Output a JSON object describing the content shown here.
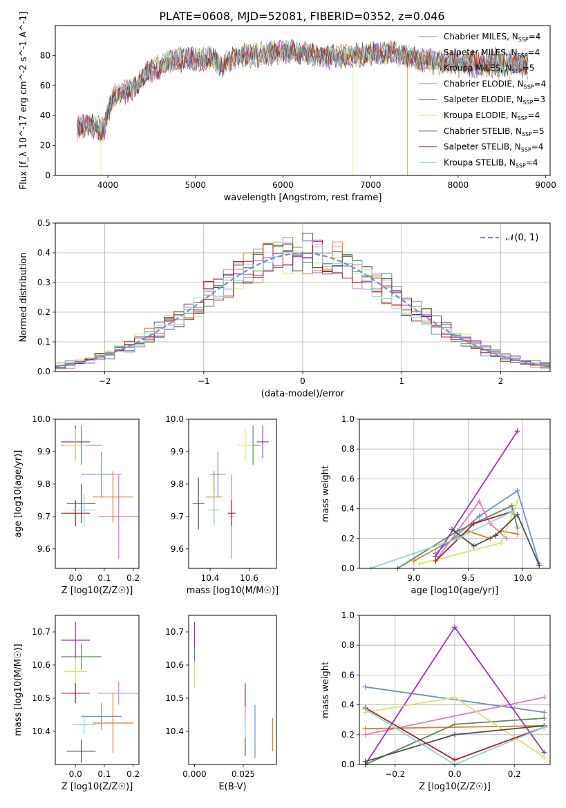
{
  "title": "PLATE=0608, MJD=52081, FIBERID=0352, z=0.046",
  "colors": {
    "Chabrier MILES": "#6a8fdb",
    "Salpeter MILES": "#e377c2",
    "Kroupa MILES": "#e07b1f",
    "Chabrier ELODIE": "#5b8a5b",
    "Salpeter ELODIE": "#9b30b8",
    "Kroupa ELODIE": "#d4e85a",
    "Chabrier STELIB": "#4d4d4d",
    "Salpeter STELIB": "#b01c1c",
    "Kroupa STELIB": "#7fd8e0"
  },
  "chart_data": [
    {
      "id": "spectrum",
      "type": "line",
      "xlabel": "wavelength [Angstrom, rest frame]",
      "ylabel": "Flux [f_λ 10^-17 erg cm^-2 s^-1 A^-1]",
      "xlim": [
        3400,
        9050
      ],
      "ylim": [
        0,
        100
      ],
      "xticks": [
        4000,
        5000,
        6000,
        7000,
        8000,
        9000
      ],
      "yticks": [
        0,
        20,
        40,
        60,
        80
      ],
      "grid": false,
      "legend_position": "top-right",
      "legend": [
        {
          "name": "Chabrier MILES",
          "label": "Chabrier MILES, N",
          "sub": "SSP",
          "tail": "=4"
        },
        {
          "name": "Salpeter MILES",
          "label": "Salpeter MILES, N",
          "sub": "SSP",
          "tail": "=4"
        },
        {
          "name": "Kroupa MILES",
          "label": "Kroupa MILES, N",
          "sub": "SSP",
          "tail": "=5"
        },
        {
          "name": "Chabrier ELODIE",
          "label": "Chabrier ELODIE, N",
          "sub": "SSP",
          "tail": "=4"
        },
        {
          "name": "Salpeter ELODIE",
          "label": "Salpeter ELODIE, N",
          "sub": "SSP",
          "tail": "=3"
        },
        {
          "name": "Kroupa ELODIE",
          "label": "Kroupa ELODIE, N",
          "sub": "SSP",
          "tail": "=4"
        },
        {
          "name": "Chabrier STELIB",
          "label": "Chabrier STELIB, N",
          "sub": "SSP",
          "tail": "=5"
        },
        {
          "name": "Salpeter STELIB",
          "label": "Salpeter STELIB, N",
          "sub": "SSP",
          "tail": "=4"
        },
        {
          "name": "Kroupa STELIB",
          "label": "Kroupa STELIB, N",
          "sub": "SSP",
          "tail": "=4"
        }
      ],
      "continuum": [
        [
          3650,
          31
        ],
        [
          3750,
          34
        ],
        [
          3850,
          33
        ],
        [
          3950,
          30
        ],
        [
          4050,
          52
        ],
        [
          4150,
          55
        ],
        [
          4300,
          58
        ],
        [
          4400,
          66
        ],
        [
          4500,
          70
        ],
        [
          4700,
          76
        ],
        [
          4900,
          78
        ],
        [
          5000,
          77
        ],
        [
          5200,
          78
        ],
        [
          5300,
          74
        ],
        [
          5500,
          80
        ],
        [
          5700,
          80
        ],
        [
          5900,
          82
        ],
        [
          6000,
          82
        ],
        [
          6200,
          82
        ],
        [
          6400,
          80
        ],
        [
          6600,
          79
        ],
        [
          6800,
          80
        ],
        [
          7000,
          81
        ],
        [
          7200,
          82
        ],
        [
          7400,
          80
        ],
        [
          7600,
          77
        ],
        [
          7800,
          75
        ],
        [
          8000,
          76
        ],
        [
          8200,
          74
        ],
        [
          8400,
          75
        ],
        [
          8600,
          74
        ],
        [
          8800,
          74
        ]
      ],
      "drops": [
        {
          "series": "Kroupa ELODIE",
          "x": 3920,
          "y": 0
        },
        {
          "series": "Kroupa ELODIE",
          "x": 6800,
          "y": 0
        },
        {
          "series": "Kroupa MILES",
          "x": 7420,
          "y": 0
        }
      ]
    },
    {
      "id": "residuals",
      "type": "histogram",
      "xlabel": "(data-model)/error",
      "ylabel": "Normed distribution",
      "xlim": [
        -2.5,
        2.5
      ],
      "ylim": [
        0,
        0.5
      ],
      "xticks": [
        -2,
        -1,
        0,
        1,
        2
      ],
      "yticks": [
        0.0,
        0.1,
        0.2,
        0.3,
        0.4,
        0.5
      ],
      "grid": true,
      "bin_width": 0.1,
      "reference_curve": {
        "label": "𝒩(0, 1)",
        "mean": 0,
        "sigma": 1,
        "style": "dashed"
      },
      "legend_position": "top-right"
    },
    {
      "id": "age-vs-Z",
      "type": "errorbar",
      "xlabel": "Z [log10(Z/Z☉)]",
      "ylabel": "age [log10(age/yr)]",
      "xlim": [
        -0.07,
        0.22
      ],
      "ylim": [
        9.54,
        10.0
      ],
      "xticks": [
        0.0,
        0.1,
        0.2
      ],
      "yticks": [
        9.6,
        9.7,
        9.8,
        9.9,
        10.0
      ],
      "points": [
        {
          "series": "Chabrier MILES",
          "x": 0.09,
          "y": 9.83,
          "xerr": 0.07,
          "yerr": 0.07
        },
        {
          "series": "Salpeter MILES",
          "x": 0.15,
          "y": 9.7,
          "xerr": 0.07,
          "yerr": 0.13
        },
        {
          "series": "Kroupa MILES",
          "x": 0.13,
          "y": 9.76,
          "xerr": 0.07,
          "yerr": 0.08
        },
        {
          "series": "Chabrier ELODIE",
          "x": 0.02,
          "y": 9.92,
          "xerr": 0.07,
          "yerr": 0.06
        },
        {
          "series": "Salpeter ELODIE",
          "x": 0.0,
          "y": 9.93,
          "xerr": 0.05,
          "yerr": 0.05
        },
        {
          "series": "Kroupa ELODIE",
          "x": 0.0,
          "y": 9.92,
          "xerr": 0.04,
          "yerr": 0.05
        },
        {
          "series": "Chabrier STELIB",
          "x": 0.02,
          "y": 9.74,
          "xerr": 0.05,
          "yerr": 0.06
        },
        {
          "series": "Salpeter STELIB",
          "x": 0.0,
          "y": 9.71,
          "xerr": 0.05,
          "yerr": 0.04
        },
        {
          "series": "Kroupa STELIB",
          "x": 0.03,
          "y": 9.72,
          "xerr": 0.04,
          "yerr": 0.05
        }
      ]
    },
    {
      "id": "age-vs-mass",
      "type": "errorbar",
      "xlabel": "mass [log10(M/M☉)]",
      "ylabel": "",
      "xlim": [
        10.29,
        10.74
      ],
      "ylim": [
        9.54,
        10.0
      ],
      "xticks": [
        10.4,
        10.6
      ],
      "yticks": [
        9.6,
        9.7,
        9.8,
        9.9,
        10.0
      ],
      "points": [
        {
          "series": "Chabrier MILES",
          "x": 10.44,
          "y": 9.83,
          "xerr": 0.04,
          "yerr": 0.07
        },
        {
          "series": "Salpeter MILES",
          "x": 10.51,
          "y": 9.7,
          "xerr": 0.01,
          "yerr": 0.13
        },
        {
          "series": "Kroupa MILES",
          "x": 10.42,
          "y": 9.76,
          "xerr": 0.04,
          "yerr": 0.08
        },
        {
          "series": "Chabrier ELODIE",
          "x": 10.62,
          "y": 9.92,
          "xerr": 0.04,
          "yerr": 0.06
        },
        {
          "series": "Salpeter ELODIE",
          "x": 10.67,
          "y": 9.93,
          "xerr": 0.03,
          "yerr": 0.05
        },
        {
          "series": "Kroupa ELODIE",
          "x": 10.58,
          "y": 9.92,
          "xerr": 0.04,
          "yerr": 0.05
        },
        {
          "series": "Chabrier STELIB",
          "x": 10.34,
          "y": 9.74,
          "xerr": 0.03,
          "yerr": 0.08
        },
        {
          "series": "Salpeter STELIB",
          "x": 10.51,
          "y": 9.71,
          "xerr": 0.02,
          "yerr": 0.04
        },
        {
          "series": "Kroupa STELIB",
          "x": 10.42,
          "y": 9.72,
          "xerr": 0.03,
          "yerr": 0.05
        }
      ]
    },
    {
      "id": "weight-vs-age",
      "type": "line",
      "xlabel": "age [log10(age/yr)]",
      "ylabel": "mass weight",
      "xlim": [
        8.5,
        10.25
      ],
      "ylim": [
        0,
        1.0
      ],
      "xticks": [
        9.0,
        9.5,
        10.0
      ],
      "yticks": [
        0.0,
        0.2,
        0.4,
        0.6,
        0.8,
        1.0
      ],
      "grid": true,
      "series": [
        {
          "name": "Chabrier MILES",
          "x": [
            9.2,
            9.6,
            9.95,
            10.15
          ],
          "y": [
            0.1,
            0.35,
            0.52,
            0.03
          ]
        },
        {
          "name": "Salpeter MILES",
          "x": [
            9.2,
            9.6,
            9.7,
            9.85
          ],
          "y": [
            0.05,
            0.45,
            0.3,
            0.2
          ]
        },
        {
          "name": "Kroupa MILES",
          "x": [
            9.0,
            9.5,
            9.7,
            9.8,
            9.95
          ],
          "y": [
            0.05,
            0.25,
            0.2,
            0.25,
            0.23
          ]
        },
        {
          "name": "Chabrier ELODIE",
          "x": [
            8.85,
            9.4,
            9.9,
            9.95
          ],
          "y": [
            0.0,
            0.25,
            0.42,
            0.27
          ]
        },
        {
          "name": "Salpeter ELODIE",
          "x": [
            9.2,
            9.95
          ],
          "y": [
            0.08,
            0.92
          ]
        },
        {
          "name": "Kroupa ELODIE",
          "x": [
            9.05,
            9.8,
            9.95
          ],
          "y": [
            0.03,
            0.17,
            0.45
          ]
        },
        {
          "name": "Chabrier STELIB",
          "x": [
            9.35,
            9.55,
            9.75,
            9.95,
            10.15
          ],
          "y": [
            0.26,
            0.15,
            0.22,
            0.36,
            0.02
          ]
        },
        {
          "name": "Salpeter STELIB",
          "x": [
            9.2,
            9.55,
            9.9
          ],
          "y": [
            0.05,
            0.3,
            0.38
          ]
        },
        {
          "name": "Kroupa STELIB",
          "x": [
            8.6,
            9.4,
            9.9
          ],
          "y": [
            0.0,
            0.2,
            0.38
          ]
        }
      ]
    },
    {
      "id": "mass-vs-Z",
      "type": "errorbar",
      "xlabel": "Z [log10(Z/Z☉)]",
      "ylabel": "mass [log10(M/M☉)]",
      "xlim": [
        -0.07,
        0.22
      ],
      "ylim": [
        10.3,
        10.75
      ],
      "xticks": [
        0.0,
        0.1,
        0.2
      ],
      "yticks": [
        10.4,
        10.5,
        10.6,
        10.7
      ],
      "points": [
        {
          "series": "Chabrier MILES",
          "x": 0.09,
          "y": 10.445,
          "xerr": 0.07,
          "yerr": 0.04
        },
        {
          "series": "Salpeter MILES",
          "x": 0.15,
          "y": 10.515,
          "xerr": 0.07,
          "yerr": 0.035
        },
        {
          "series": "Kroupa MILES",
          "x": 0.13,
          "y": 10.425,
          "xerr": 0.07,
          "yerr": 0.09
        },
        {
          "series": "Chabrier ELODIE",
          "x": 0.02,
          "y": 10.625,
          "xerr": 0.07,
          "yerr": 0.04
        },
        {
          "series": "Salpeter ELODIE",
          "x": 0.0,
          "y": 10.675,
          "xerr": 0.05,
          "yerr": 0.055
        },
        {
          "series": "Kroupa ELODIE",
          "x": 0.0,
          "y": 10.58,
          "xerr": 0.04,
          "yerr": 0.04
        },
        {
          "series": "Chabrier STELIB",
          "x": 0.02,
          "y": 10.34,
          "xerr": 0.05,
          "yerr": 0.035
        },
        {
          "series": "Salpeter STELIB",
          "x": 0.0,
          "y": 10.515,
          "xerr": 0.05,
          "yerr": 0.03
        },
        {
          "series": "Kroupa STELIB",
          "x": 0.03,
          "y": 10.42,
          "xerr": 0.04,
          "yerr": 0.03
        }
      ]
    },
    {
      "id": "mass-vs-ebv",
      "type": "errorbar",
      "xlabel": "E(B-V)",
      "ylabel": "",
      "xlim": [
        -0.003,
        0.042
      ],
      "ylim": [
        10.3,
        10.75
      ],
      "xticks": [
        0.0,
        0.025
      ],
      "xticklabels": [
        "0.000",
        "0.025"
      ],
      "yticks": [
        10.4,
        10.5,
        10.6,
        10.7
      ],
      "points": [
        {
          "series": "Chabrier MILES",
          "x": 0.031,
          "y": 10.4,
          "xerr": 0,
          "yerr": 0.08
        },
        {
          "series": "Salpeter MILES",
          "x": 0.026,
          "y": 10.47,
          "xerr": 0,
          "yerr": 0.06
        },
        {
          "series": "Kroupa MILES",
          "x": 0.04,
          "y": 10.39,
          "xerr": 0,
          "yerr": 0.05
        },
        {
          "series": "Chabrier ELODIE",
          "x": 0.0,
          "y": 10.62,
          "xerr": 0,
          "yerr": 0.03
        },
        {
          "series": "Salpeter ELODIE",
          "x": 0.0,
          "y": 10.69,
          "xerr": 0,
          "yerr": 0.04
        },
        {
          "series": "Kroupa ELODIE",
          "x": 0.0,
          "y": 10.57,
          "xerr": 0,
          "yerr": 0.04
        },
        {
          "series": "Chabrier STELIB",
          "x": 0.026,
          "y": 10.355,
          "xerr": 0,
          "yerr": 0.03
        },
        {
          "series": "Salpeter STELIB",
          "x": 0.026,
          "y": 10.51,
          "xerr": 0,
          "yerr": 0.035
        },
        {
          "series": "Kroupa STELIB",
          "x": 0.026,
          "y": 10.41,
          "xerr": 0,
          "yerr": 0.03
        }
      ]
    },
    {
      "id": "weight-vs-Z",
      "type": "line",
      "xlabel": "Z [log10(Z/Z☉)]",
      "ylabel": "mass weight",
      "xlim": [
        -0.32,
        0.32
      ],
      "ylim": [
        0,
        1.0
      ],
      "xticks": [
        -0.2,
        0.0,
        0.2
      ],
      "yticks": [
        0.0,
        0.2,
        0.4,
        0.6,
        0.8,
        1.0
      ],
      "grid": true,
      "series": [
        {
          "name": "Chabrier MILES",
          "x": [
            -0.3,
            0.3
          ],
          "y": [
            0.52,
            0.35
          ]
        },
        {
          "name": "Salpeter MILES",
          "x": [
            -0.3,
            0.3
          ],
          "y": [
            0.2,
            0.45
          ]
        },
        {
          "name": "Kroupa MILES",
          "x": [
            -0.3,
            0.3
          ],
          "y": [
            0.24,
            0.26
          ]
        },
        {
          "name": "Chabrier ELODIE",
          "x": [
            -0.3,
            0.0,
            0.3
          ],
          "y": [
            0.0,
            0.27,
            0.31
          ]
        },
        {
          "name": "Salpeter ELODIE",
          "x": [
            -0.3,
            0.0,
            0.3
          ],
          "y": [
            0.0,
            0.92,
            0.08
          ]
        },
        {
          "name": "Kroupa ELODIE",
          "x": [
            -0.3,
            0.0,
            0.3
          ],
          "y": [
            0.35,
            0.45,
            0.05
          ]
        },
        {
          "name": "Chabrier STELIB",
          "x": [
            -0.3,
            0.0,
            0.3
          ],
          "y": [
            0.02,
            0.2,
            0.26
          ]
        },
        {
          "name": "Salpeter STELIB",
          "x": [
            -0.3,
            0.0,
            0.3
          ],
          "y": [
            0.38,
            0.03,
            0.25
          ]
        },
        {
          "name": "Kroupa STELIB",
          "x": [
            -0.3,
            0.0,
            0.3
          ],
          "y": [
            0.37,
            0.0,
            0.25
          ]
        }
      ]
    }
  ]
}
